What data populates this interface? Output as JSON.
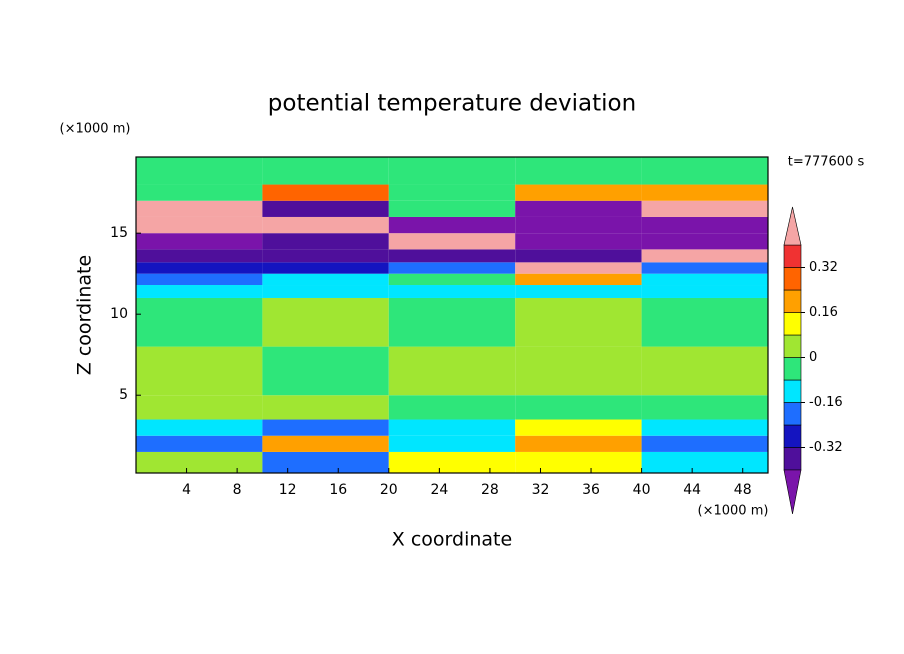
{
  "chart_data": {
    "type": "contour",
    "title": "potential temperature deviation",
    "y_unit": "(×1000 m)",
    "x_unit": "(×1000 m)",
    "time_label": "t=777600 s",
    "xlabel": "X coordinate",
    "ylabel": "Z coordinate",
    "xlim": [
      0,
      50
    ],
    "xticks": [
      4,
      8,
      12,
      16,
      20,
      24,
      28,
      32,
      36,
      40,
      44,
      48
    ],
    "ylim": [
      0.2,
      19.7
    ],
    "yticks": [
      5,
      10,
      15
    ],
    "x_edges": [
      0,
      10,
      20,
      30,
      40,
      50
    ],
    "y_edges": [
      0.2,
      1.5,
      2.5,
      3.5,
      5,
      8,
      11,
      11.8,
      12.5,
      13.2,
      14,
      15,
      16,
      17,
      18,
      19.7
    ],
    "values": [
      [
        0.05,
        -0.2,
        0.1,
        0.1,
        -0.1
      ],
      [
        -0.2,
        0.2,
        -0.1,
        0.2,
        -0.2
      ],
      [
        -0.12,
        -0.2,
        -0.12,
        0.1,
        -0.12
      ],
      [
        0.04,
        0.04,
        -0.04,
        -0.04,
        -0.04
      ],
      [
        0.04,
        -0.04,
        0.04,
        0.04,
        0.04
      ],
      [
        -0.04,
        0.04,
        -0.04,
        0.04,
        -0.04
      ],
      [
        -0.12,
        -0.12,
        -0.12,
        -0.12,
        -0.12
      ],
      [
        -0.2,
        -0.12,
        -0.04,
        0.2,
        -0.12
      ],
      [
        -0.28,
        -0.28,
        -0.2,
        0.45,
        -0.2
      ],
      [
        -0.36,
        -0.36,
        -0.36,
        -0.36,
        0.45
      ],
      [
        -0.45,
        -0.36,
        0.45,
        -0.45,
        -0.45
      ],
      [
        0.45,
        0.45,
        -0.45,
        -0.45,
        -0.45
      ],
      [
        0.45,
        -0.36,
        -0.04,
        -0.45,
        0.45
      ],
      [
        -0.04,
        0.3,
        -0.04,
        0.2,
        0.2
      ],
      [
        -0.04,
        -0.04,
        -0.04,
        -0.04,
        -0.04
      ]
    ],
    "levels": [
      -0.4,
      -0.32,
      -0.24,
      -0.16,
      -0.08,
      0,
      0.08,
      0.16,
      0.24,
      0.32,
      0.4
    ],
    "colors": [
      "#7a14aa",
      "#4f0f9b",
      "#1414c0",
      "#1e6eff",
      "#00e6ff",
      "#2ee67a",
      "#a0e632",
      "#ffff00",
      "#ffa000",
      "#ff6400",
      "#f03232",
      "#f5a5a5"
    ],
    "colorbar_ticks": [
      0.32,
      0.16,
      0,
      -0.16,
      -0.32
    ]
  }
}
